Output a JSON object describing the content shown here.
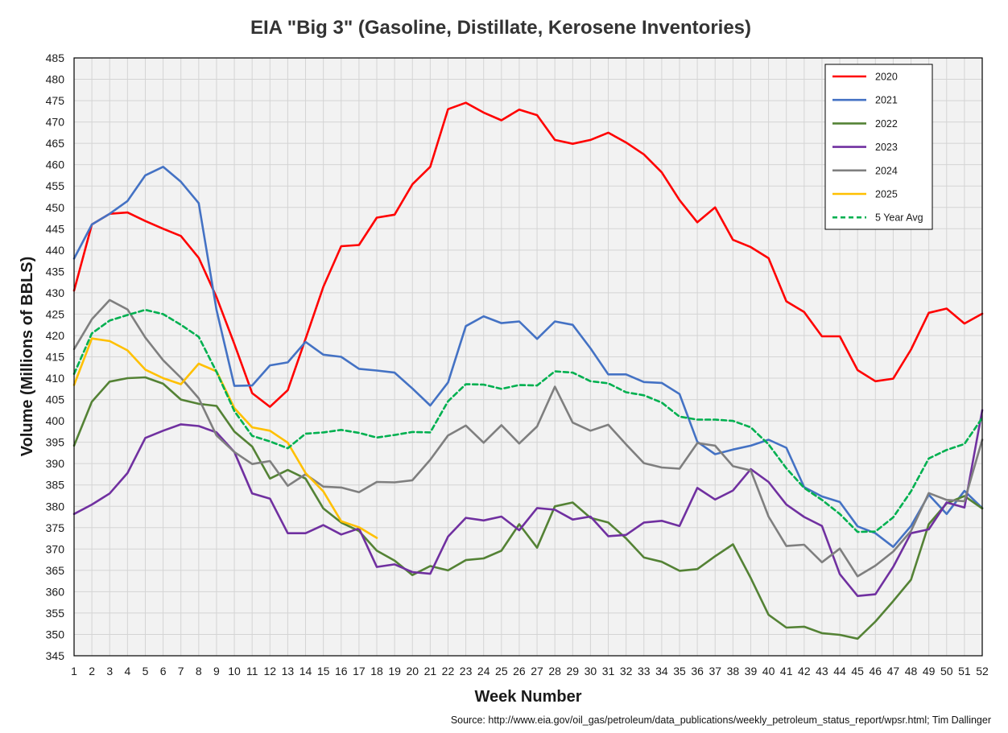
{
  "chart_data": {
    "type": "line",
    "title": "EIA \"Big 3\" (Gasoline, Distillate, Kerosene Inventories)",
    "xlabel": "Week Number",
    "ylabel": "Volume (Millions of BBLS)",
    "source": "Source: http://www.eia.gov/oil_gas/petroleum/data_publications/weekly_petroleum_status_report/wpsr.html; Tim Dallinger",
    "xlim": [
      1,
      52
    ],
    "ylim": [
      345,
      485
    ],
    "ytick_step": 5,
    "grid": true,
    "legend_position": "top-right",
    "x": [
      1,
      2,
      3,
      4,
      5,
      6,
      7,
      8,
      9,
      10,
      11,
      12,
      13,
      14,
      15,
      16,
      17,
      18,
      19,
      20,
      21,
      22,
      23,
      24,
      25,
      26,
      27,
      28,
      29,
      30,
      31,
      32,
      33,
      34,
      35,
      36,
      37,
      38,
      39,
      40,
      41,
      42,
      43,
      44,
      45,
      46,
      47,
      48,
      49,
      50,
      51,
      52
    ],
    "series": [
      {
        "name": "2020",
        "color": "#ff0000",
        "dashed": false,
        "values": [
          430.5,
          446,
          448.5,
          448.8,
          446.8,
          445,
          443.3,
          438.2,
          429,
          418,
          406.5,
          403.3,
          407.2,
          419.2,
          431.4,
          440.9,
          441.2,
          447.6,
          448.3,
          455.4,
          459.5,
          473,
          474.5,
          472.2,
          470.4,
          472.9,
          471.6,
          465.8,
          464.9,
          465.8,
          467.5,
          465.2,
          462.4,
          458.2,
          451.7,
          446.5,
          450,
          442.4,
          440.7,
          438.1,
          428,
          425.5,
          419.8,
          419.8,
          411.9,
          409.3,
          409.9,
          416.7,
          425.3,
          426.3,
          422.8,
          425.1
        ]
      },
      {
        "name": "2021",
        "color": "#4472c4",
        "dashed": false,
        "values": [
          438,
          446,
          448.5,
          451.5,
          457.5,
          459.5,
          456,
          451,
          426,
          408.2,
          408.3,
          413,
          413.7,
          418.5,
          415.5,
          415,
          412.2,
          411.8,
          411.3,
          407.6,
          403.6,
          409,
          422.2,
          424.5,
          422.9,
          423.3,
          419.2,
          423.3,
          422.5,
          417,
          410.9,
          410.9,
          409.1,
          408.9,
          406.3,
          395.1,
          392.2,
          393.3,
          394.2,
          395.6,
          393.7,
          384.5,
          382.3,
          381,
          375.3,
          373.7,
          370.5,
          375.4,
          382.7,
          378.2,
          383.6,
          379.6
        ]
      },
      {
        "name": "2022",
        "color": "#548235",
        "dashed": false,
        "values": [
          394.2,
          404.5,
          409.2,
          410,
          410.2,
          408.7,
          405,
          404,
          403.5,
          397.5,
          394,
          386.5,
          388.5,
          386.5,
          379.5,
          376.2,
          374.2,
          369.6,
          367.3,
          363.9,
          366,
          365,
          367.4,
          367.8,
          369.6,
          375.8,
          370.3,
          380,
          380.9,
          377.3,
          376.2,
          372.5,
          368,
          367,
          364.9,
          365.3,
          368.3,
          371.1,
          363.2,
          354.6,
          351.6,
          351.8,
          350.3,
          349.9,
          349,
          353,
          357.8,
          362.8,
          375.8,
          380.7,
          382.4,
          379.5
        ]
      },
      {
        "name": "2023",
        "color": "#7030a0",
        "dashed": false,
        "values": [
          378.2,
          380.4,
          383,
          387.8,
          396,
          397.7,
          399.2,
          398.8,
          397.3,
          392.7,
          383,
          381.8,
          373.7,
          373.7,
          375.6,
          373.4,
          374.8,
          365.8,
          366.4,
          364.6,
          364.2,
          372.9,
          377.3,
          376.7,
          377.6,
          374.4,
          379.6,
          379.2,
          376.9,
          377.6,
          373,
          373.3,
          376.2,
          376.6,
          375.4,
          384.3,
          381.6,
          383.7,
          388.7,
          385.7,
          380.4,
          377.5,
          375.4,
          364.1,
          359,
          359.4,
          365.8,
          373.7,
          374.6,
          380.9,
          379.7,
          402.5
        ]
      },
      {
        "name": "2024",
        "color": "#7f7f7f",
        "dashed": false,
        "values": [
          416.8,
          423.8,
          428.3,
          426.1,
          419.5,
          414.2,
          410.1,
          405.3,
          396.6,
          392.7,
          389.9,
          390.6,
          384.8,
          387.5,
          384.6,
          384.4,
          383.3,
          385.7,
          385.6,
          386.1,
          390.9,
          396.6,
          398.9,
          394.9,
          399,
          394.7,
          398.7,
          408,
          399.6,
          397.7,
          399.1,
          394.5,
          390.1,
          389.1,
          388.8,
          394.8,
          394.2,
          389.4,
          388.4,
          377.6,
          370.7,
          371,
          366.9,
          370.1,
          363.6,
          366.1,
          369.4,
          374.2,
          383.1,
          381.5,
          381.2,
          395.6
        ]
      },
      {
        "name": "2025",
        "color": "#ffc000",
        "dashed": false,
        "values": [
          408.4,
          419.3,
          418.7,
          416.5,
          412,
          410,
          408.6,
          413.4,
          411.6,
          403,
          398.5,
          397.7,
          394.9,
          387.8,
          383.5,
          376.5,
          375.1,
          372.6,
          null,
          null,
          null,
          null,
          null,
          null,
          null,
          null,
          null,
          null,
          null,
          null,
          null,
          null,
          null,
          null,
          null,
          null,
          null,
          null,
          null,
          null,
          null,
          null,
          null,
          null,
          null,
          null,
          null,
          null,
          null,
          null,
          null,
          null
        ]
      },
      {
        "name": "5 Year Avg",
        "color": "#00b050",
        "dashed": true,
        "values": [
          411,
          420.5,
          423.5,
          424.8,
          426,
          425,
          422.5,
          419.7,
          411.5,
          402.3,
          396.5,
          395.2,
          393.6,
          397,
          397.3,
          397.9,
          397.2,
          396.1,
          396.7,
          397.4,
          397.3,
          404.6,
          408.6,
          408.5,
          407.5,
          408.4,
          408.3,
          411.6,
          411.3,
          409.3,
          408.8,
          406.7,
          406,
          404.3,
          401,
          400.3,
          400.3,
          400,
          398.5,
          394.5,
          388.9,
          384.3,
          381.5,
          378.2,
          374,
          374.1,
          377.4,
          383.5,
          391.2,
          393.2,
          394.6,
          400.7
        ]
      }
    ]
  }
}
